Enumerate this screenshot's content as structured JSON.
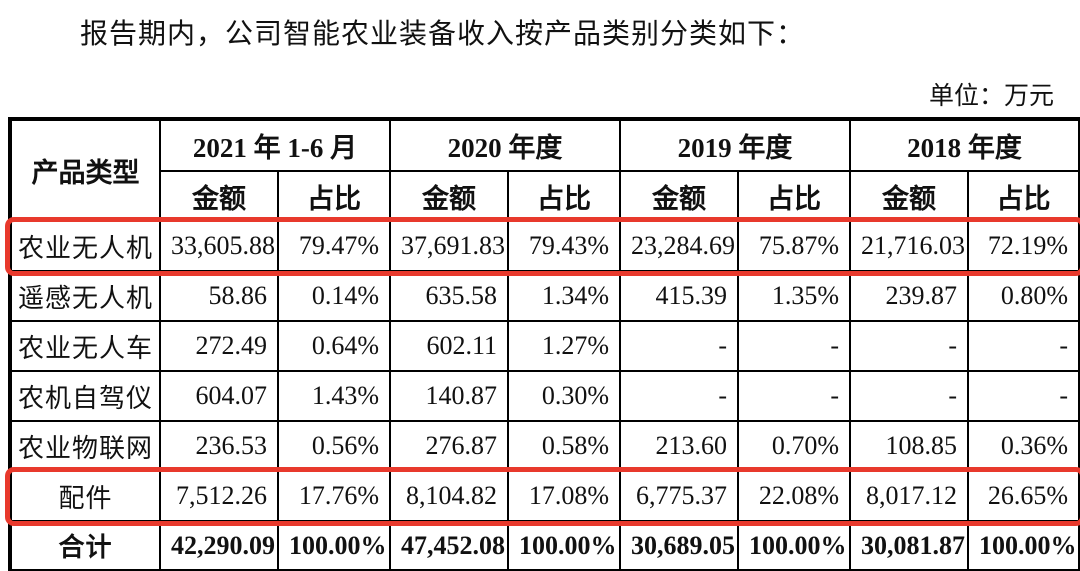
{
  "document": {
    "intro": "报告期内，公司智能农业装备收入按产品类别分类如下：",
    "unit_label": "单位：万元"
  },
  "table": {
    "product_type_header": "产品类型",
    "period_headers": [
      "2021 年 1-6 月",
      "2020 年度",
      "2019 年度",
      "2018 年度"
    ],
    "sub_headers": {
      "amount": "金额",
      "ratio": "占比"
    },
    "highlight_color": "#e8392c",
    "rows": [
      {
        "label": "农业无人机",
        "highlight": true,
        "values": [
          "33,605.88",
          "79.47%",
          "37,691.83",
          "79.43%",
          "23,284.69",
          "75.87%",
          "21,716.03",
          "72.19%"
        ]
      },
      {
        "label": "遥感无人机",
        "highlight": false,
        "values": [
          "58.86",
          "0.14%",
          "635.58",
          "1.34%",
          "415.39",
          "1.35%",
          "239.87",
          "0.80%"
        ]
      },
      {
        "label": "农业无人车",
        "highlight": false,
        "values": [
          "272.49",
          "0.64%",
          "602.11",
          "1.27%",
          "-",
          "-",
          "-",
          "-"
        ]
      },
      {
        "label": "农机自驾仪",
        "highlight": false,
        "values": [
          "604.07",
          "1.43%",
          "140.87",
          "0.30%",
          "-",
          "-",
          "-",
          "-"
        ]
      },
      {
        "label": "农业物联网",
        "highlight": false,
        "values": [
          "236.53",
          "0.56%",
          "276.87",
          "0.58%",
          "213.60",
          "0.70%",
          "108.85",
          "0.36%"
        ]
      },
      {
        "label": "配件",
        "highlight": true,
        "values": [
          "7,512.26",
          "17.76%",
          "8,104.82",
          "17.08%",
          "6,775.37",
          "22.08%",
          "8,017.12",
          "26.65%"
        ]
      },
      {
        "label": "合计",
        "highlight": false,
        "is_total": true,
        "values": [
          "42,290.09",
          "100.00%",
          "47,452.08",
          "100.00%",
          "30,689.05",
          "100.00%",
          "30,081.87",
          "100.00%"
        ]
      }
    ]
  }
}
